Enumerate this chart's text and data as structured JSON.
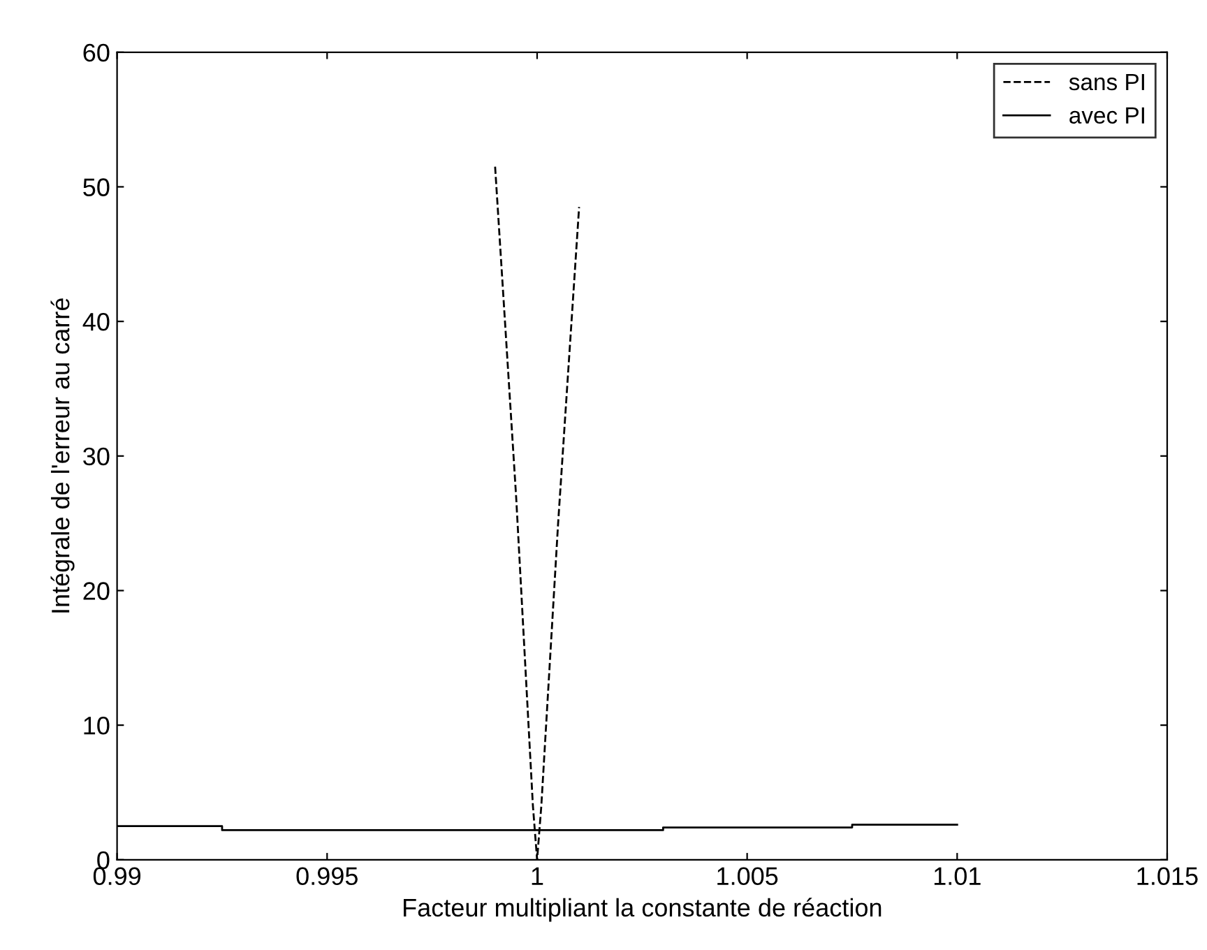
{
  "chart_data": {
    "type": "line",
    "xlabel": "Facteur multipliant la constante de réaction",
    "ylabel": "Intégrale de l'erreur au carré",
    "xlim": [
      0.99,
      1.015
    ],
    "xticks": [
      0.99,
      0.995,
      1,
      1.005,
      1.01,
      1.015
    ],
    "ylim": [
      0,
      60
    ],
    "yticks": [
      0,
      10,
      20,
      30,
      40,
      50,
      60
    ],
    "grid": false,
    "legend": "top right",
    "series": [
      {
        "name": "sans PI",
        "color": "#000000",
        "line_style": "dashed",
        "x": [
          0.999,
          0.9995,
          0.9999,
          1,
          1.0001,
          1.0005,
          1.001
        ],
        "values": [
          51.5,
          27,
          4,
          0,
          4,
          25,
          48.5
        ]
      },
      {
        "name": "avec PI",
        "color": "#000000",
        "line_style": "solid",
        "x": [
          0.99,
          0.9925,
          0.9925,
          1.003,
          1.003,
          1.0075,
          1.0075,
          1.01
        ],
        "values": [
          2.5,
          2.5,
          2.2,
          2.2,
          2.4,
          2.4,
          2.6,
          2.6
        ]
      }
    ]
  }
}
